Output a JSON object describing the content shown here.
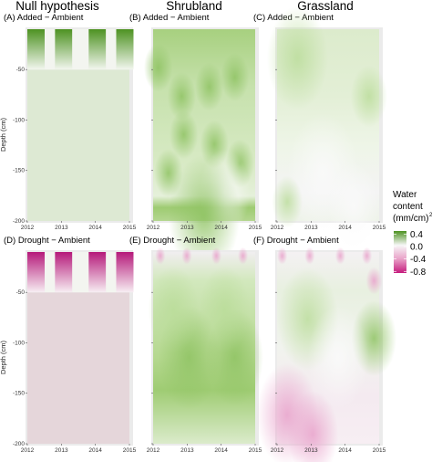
{
  "figure": {
    "columns": [
      "Null hypothesis",
      "Shrubland",
      "Grassland"
    ],
    "ylabel": "Depth (cm)",
    "xticks": [
      "2012",
      "2013",
      "2014",
      "2015"
    ],
    "yticks": [
      "-50",
      "-100",
      "-150",
      "-200"
    ]
  },
  "legend": {
    "title_lines": [
      "Water",
      "content",
      "(mm/cm)"
    ],
    "labels": [
      "0.4",
      "0.0",
      "-0.4",
      "-0.8"
    ],
    "values": [
      0.4,
      0.0,
      -0.4,
      -0.8
    ],
    "colors": {
      "pos": "#4d9221",
      "zero": "#f7f7f7",
      "neg": "#c51b7d"
    }
  },
  "chart_data": [
    {
      "type": "heatmap",
      "title": "(A) Added − Ambient",
      "column": "Null hypothesis",
      "row": "Added",
      "x_range": [
        2012,
        2015
      ],
      "y_range": [
        -200,
        -10
      ],
      "shallow_band_max_value": 0.4,
      "deep_value_below_minus_50": 0.05
    },
    {
      "type": "heatmap",
      "title": "(B) Added − Ambient",
      "column": "Shrubland",
      "row": "Added",
      "x_range": [
        2012,
        2015
      ],
      "y_range": [
        -200,
        -10
      ],
      "typical_value": 0.15
    },
    {
      "type": "heatmap",
      "title": "(C) Added − Ambient",
      "column": "Grassland",
      "row": "Added",
      "x_range": [
        2012,
        2015
      ],
      "y_range": [
        -200,
        -10
      ],
      "typical_value": 0.08
    },
    {
      "type": "heatmap",
      "title": "(D) Drought − Ambient",
      "column": "Null hypothesis",
      "row": "Drought",
      "x_range": [
        2012,
        2015
      ],
      "y_range": [
        -200,
        -10
      ],
      "shallow_band_min_value": -0.8,
      "deep_value_below_minus_50": -0.05
    },
    {
      "type": "heatmap",
      "title": "(E) Drought − Ambient",
      "column": "Shrubland",
      "row": "Drought",
      "x_range": [
        2012,
        2015
      ],
      "y_range": [
        -200,
        -10
      ],
      "typical_value": 0.15
    },
    {
      "type": "heatmap",
      "title": "(F) Drought − Ambient",
      "column": "Grassland",
      "row": "Drought",
      "x_range": [
        2012,
        2015
      ],
      "y_range": [
        -200,
        -10
      ],
      "typical_value": -0.05
    }
  ]
}
